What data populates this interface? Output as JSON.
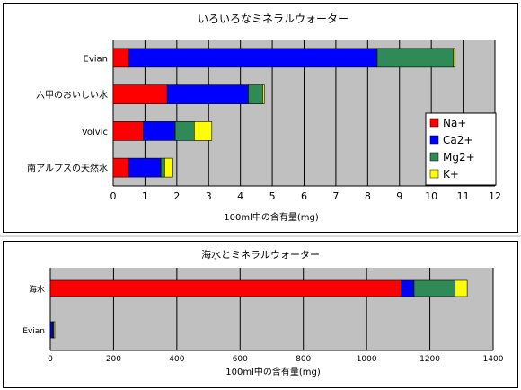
{
  "chart_data": [
    {
      "type": "bar",
      "orientation": "horizontal",
      "stacked": true,
      "title": "いろいろなミネラルウォーター",
      "xlabel": "100ml中の含有量(mg)",
      "ylabel": "",
      "xlim": [
        0,
        12
      ],
      "x_ticks": [
        "0",
        "1",
        "2",
        "3",
        "4",
        "5",
        "6",
        "7",
        "8",
        "9",
        "10",
        "11",
        "12"
      ],
      "categories": [
        "Evian",
        "六甲のおいしい水",
        "Volvic",
        "南アルプスの天然水"
      ],
      "series": [
        {
          "name": "Na+",
          "color": "#ff0000",
          "values": [
            0.5,
            1.7,
            0.95,
            0.5
          ]
        },
        {
          "name": "Ca2+",
          "color": "#0000ff",
          "values": [
            7.8,
            2.55,
            1.0,
            1.0
          ]
        },
        {
          "name": "Mg2+",
          "color": "#2e8b57",
          "values": [
            2.4,
            0.45,
            0.6,
            0.12
          ]
        },
        {
          "name": "K+",
          "color": "#ffff00",
          "values": [
            0.05,
            0.05,
            0.55,
            0.25
          ]
        }
      ],
      "legend": "right",
      "legend_labels": [
        "Na+",
        "Ca2+",
        "Mg2+",
        "K+"
      ],
      "grid": true,
      "background": "#c0c0c0"
    },
    {
      "type": "bar",
      "orientation": "horizontal",
      "stacked": true,
      "title": "海水とミネラルウォーター",
      "xlabel": "100ml中の含有量(mg)",
      "ylabel": "",
      "xlim": [
        0,
        1400
      ],
      "x_ticks": [
        "0",
        "200",
        "400",
        "600",
        "800",
        "1000",
        "1200",
        "1400"
      ],
      "categories": [
        "海水",
        "Evian"
      ],
      "series": [
        {
          "name": "Na+",
          "color": "#ff0000",
          "values": [
            1110,
            0.5
          ]
        },
        {
          "name": "Ca2+",
          "color": "#0000ff",
          "values": [
            40,
            7.8
          ]
        },
        {
          "name": "Mg2+",
          "color": "#2e8b57",
          "values": [
            130,
            2.4
          ]
        },
        {
          "name": "K+",
          "color": "#ffff00",
          "values": [
            38,
            0.05
          ]
        }
      ],
      "grid": true,
      "background": "#c0c0c0"
    }
  ]
}
